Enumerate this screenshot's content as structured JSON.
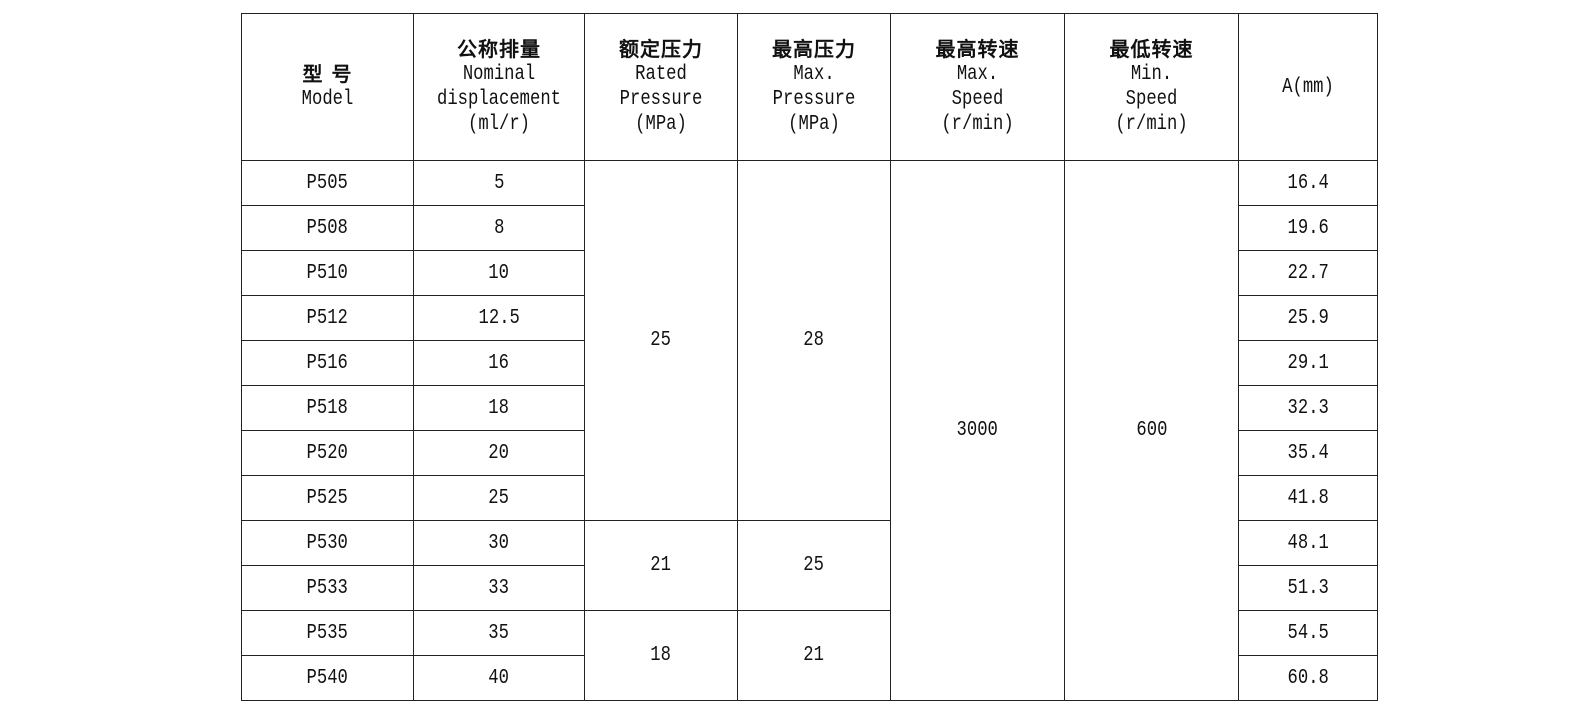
{
  "headers": [
    {
      "cn": "型 号",
      "en": [
        "Model"
      ]
    },
    {
      "cn": "公称排量",
      "en": [
        "Nominal",
        "displacement",
        "(ml/r)"
      ]
    },
    {
      "cn": "额定压力",
      "en": [
        "Rated",
        "Pressure",
        "(MPa)"
      ]
    },
    {
      "cn": "最高压力",
      "en": [
        "Max.",
        "Pressure",
        "(MPa)"
      ]
    },
    {
      "cn": "最高转速",
      "en": [
        "Max.",
        "Speed",
        "(r/min)"
      ]
    },
    {
      "cn": "最低转速",
      "en": [
        "Min.",
        "Speed",
        "(r/min)"
      ]
    },
    {
      "cn": "",
      "en": [
        "A(mm)"
      ]
    }
  ],
  "rows": [
    {
      "model": "P505",
      "displacement": "5",
      "a_mm": "16.4"
    },
    {
      "model": "P508",
      "displacement": "8",
      "a_mm": "19.6"
    },
    {
      "model": "P510",
      "displacement": "10",
      "a_mm": "22.7"
    },
    {
      "model": "P512",
      "displacement": "12.5",
      "a_mm": "25.9"
    },
    {
      "model": "P516",
      "displacement": "16",
      "a_mm": "29.1"
    },
    {
      "model": "P518",
      "displacement": "18",
      "a_mm": "32.3"
    },
    {
      "model": "P520",
      "displacement": "20",
      "a_mm": "35.4"
    },
    {
      "model": "P525",
      "displacement": "25",
      "a_mm": "41.8"
    },
    {
      "model": "P530",
      "displacement": "30",
      "a_mm": "48.1"
    },
    {
      "model": "P533",
      "displacement": "33",
      "a_mm": "51.3"
    },
    {
      "model": "P535",
      "displacement": "35",
      "a_mm": "54.5"
    },
    {
      "model": "P540",
      "displacement": "40",
      "a_mm": "60.8"
    }
  ],
  "pressure_groups": [
    {
      "start": 0,
      "span": 8,
      "rated": "25",
      "max": "28"
    },
    {
      "start": 8,
      "span": 2,
      "rated": "21",
      "max": "25"
    },
    {
      "start": 10,
      "span": 2,
      "rated": "18",
      "max": "21"
    }
  ],
  "max_speed": "3000",
  "min_speed": "600"
}
